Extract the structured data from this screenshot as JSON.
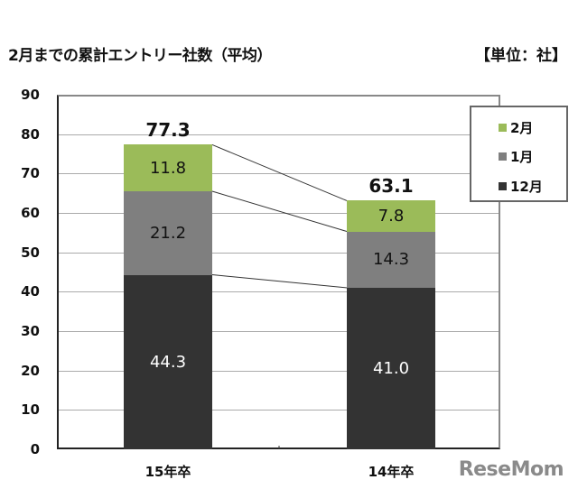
{
  "header": {
    "title": "2月までの累計エントリー社数（平均）",
    "unit": "【単位：社】"
  },
  "watermark": "ReseMom",
  "colors": {
    "feb": "#9bbb59",
    "jan": "#7f7f7f",
    "dec": "#333333"
  },
  "chart_data": {
    "type": "bar",
    "stacked": true,
    "title": "2月までの累計エントリー社数（平均）",
    "unit_label": "【単位：社】",
    "xlabel": "",
    "ylabel": "",
    "ylim": [
      0,
      90
    ],
    "yticks": [
      0,
      10,
      20,
      30,
      40,
      50,
      60,
      70,
      80,
      90
    ],
    "categories": [
      "15年卒",
      "14年卒"
    ],
    "series": [
      {
        "name": "12月",
        "color": "#333333",
        "values": [
          44.3,
          41.0
        ]
      },
      {
        "name": "1月",
        "color": "#7f7f7f",
        "values": [
          21.2,
          14.3
        ]
      },
      {
        "name": "2月",
        "color": "#9bbb59",
        "values": [
          11.8,
          7.8
        ]
      }
    ],
    "totals": [
      77.3,
      63.1
    ],
    "value_labels": {
      "15年卒": {
        "12月": "44.3",
        "1月": "21.2",
        "2月": "11.8",
        "total": "77.3"
      },
      "14年卒": {
        "12月": "41.0",
        "1月": "14.3",
        "2月": "7.8",
        "total": "63.1"
      }
    },
    "legend": {
      "position": "top-right",
      "entries": [
        "2月",
        "1月",
        "12月"
      ]
    },
    "grid": true,
    "series_lines": true
  }
}
